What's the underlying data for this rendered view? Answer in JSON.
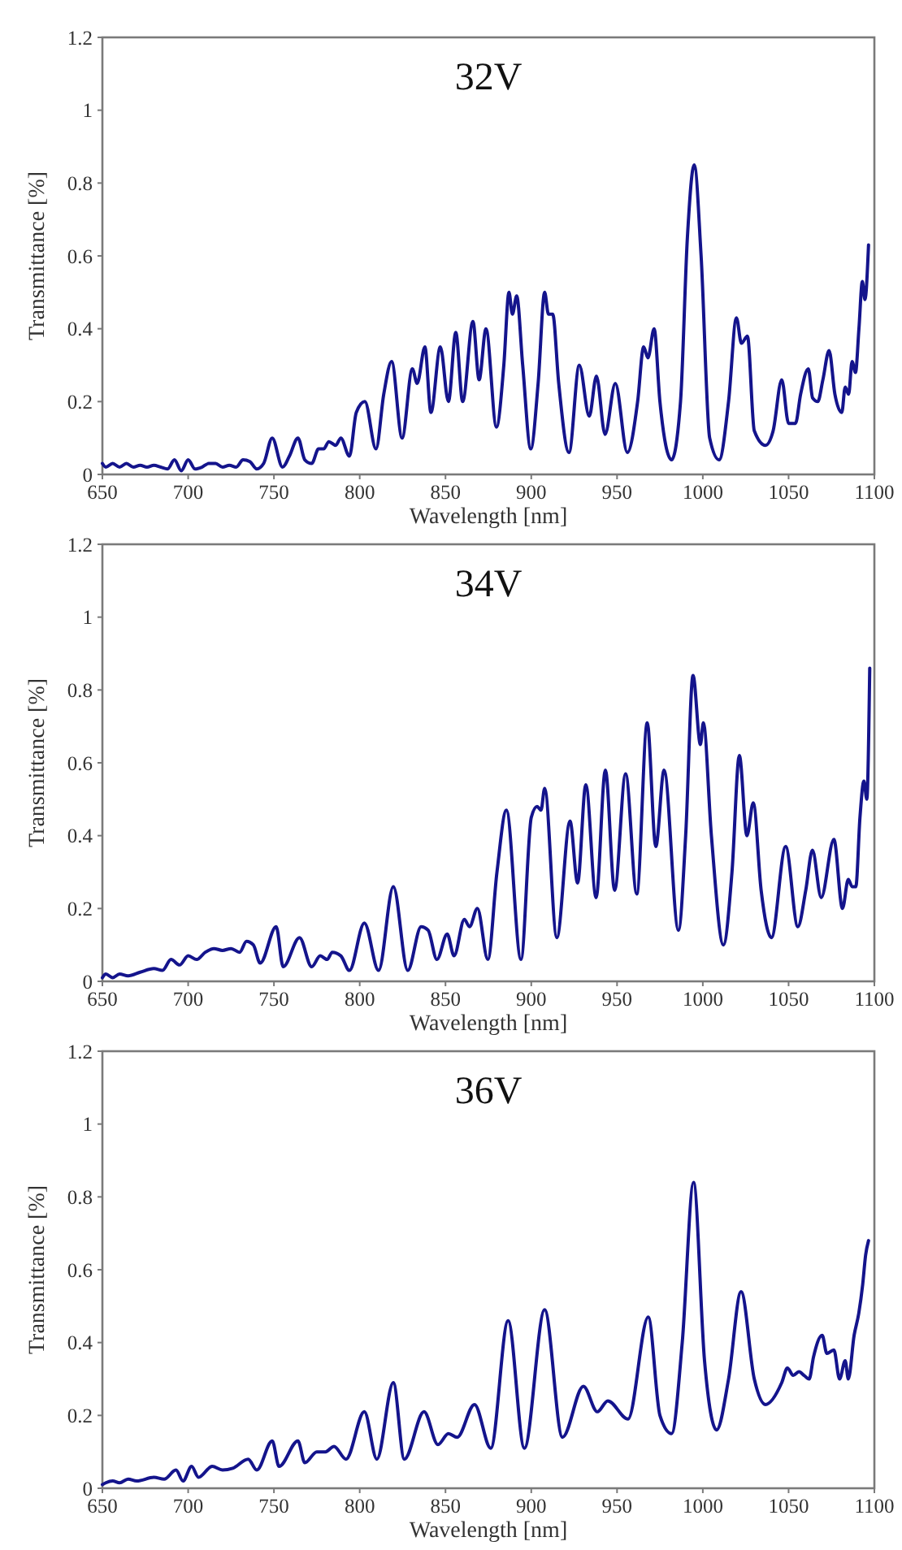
{
  "chart_data": [
    {
      "type": "line",
      "title": "32V",
      "xlabel": "Wavelength [nm]",
      "ylabel": "Transmittance [%]",
      "xlim": [
        650,
        1100
      ],
      "xticks": [
        650,
        700,
        750,
        800,
        850,
        900,
        950,
        1000,
        1050,
        1100
      ],
      "ylim": [
        0,
        1.2
      ],
      "yticks": [
        0,
        0.2,
        0.4,
        0.6,
        0.8,
        1,
        1.2
      ],
      "grid": false,
      "series": [
        {
          "color": "#14148c",
          "x": [
            650,
            652,
            656,
            660,
            664,
            668,
            672,
            676,
            680,
            684,
            688,
            692,
            696,
            700,
            704,
            708,
            712,
            716,
            720,
            724,
            728,
            732,
            736,
            740,
            744,
            749,
            755,
            759,
            764,
            768,
            772,
            776,
            779,
            782,
            786,
            789,
            794,
            798,
            803,
            809.5,
            814,
            818.6,
            824.7,
            830.7,
            833.5,
            838,
            841.5,
            847,
            851.7,
            856,
            860,
            866,
            869.6,
            873.6,
            879.7,
            884,
            887,
            889,
            891.5,
            895,
            899.7,
            904,
            907.8,
            910,
            912.5,
            916,
            922,
            928,
            933.8,
            938,
            943,
            949,
            956,
            962,
            965.5,
            968,
            971.6,
            975,
            981.8,
            987,
            991,
            995,
            999,
            1004,
            1009.5,
            1015,
            1019.6,
            1022.5,
            1026,
            1030,
            1036.5,
            1041,
            1046,
            1050,
            1054,
            1057,
            1061.5,
            1064,
            1067,
            1070,
            1073.6,
            1077,
            1081,
            1083,
            1085,
            1087,
            1089,
            1091,
            1093,
            1094.5,
            1096.6
          ],
          "values": [
            0.03,
            0.02,
            0.03,
            0.02,
            0.03,
            0.02,
            0.025,
            0.02,
            0.025,
            0.02,
            0.015,
            0.04,
            0.01,
            0.04,
            0.015,
            0.02,
            0.03,
            0.03,
            0.02,
            0.025,
            0.02,
            0.04,
            0.035,
            0.015,
            0.03,
            0.1,
            0.02,
            0.05,
            0.1,
            0.04,
            0.03,
            0.07,
            0.07,
            0.09,
            0.08,
            0.1,
            0.05,
            0.17,
            0.2,
            0.07,
            0.22,
            0.31,
            0.1,
            0.29,
            0.25,
            0.35,
            0.17,
            0.35,
            0.2,
            0.39,
            0.2,
            0.42,
            0.26,
            0.4,
            0.13,
            0.3,
            0.5,
            0.44,
            0.49,
            0.3,
            0.07,
            0.25,
            0.5,
            0.44,
            0.44,
            0.25,
            0.06,
            0.3,
            0.16,
            0.27,
            0.11,
            0.25,
            0.06,
            0.2,
            0.35,
            0.32,
            0.4,
            0.2,
            0.04,
            0.2,
            0.65,
            0.85,
            0.6,
            0.1,
            0.04,
            0.2,
            0.43,
            0.36,
            0.38,
            0.12,
            0.08,
            0.12,
            0.26,
            0.14,
            0.14,
            0.22,
            0.29,
            0.21,
            0.2,
            0.26,
            0.34,
            0.22,
            0.17,
            0.24,
            0.22,
            0.31,
            0.28,
            0.4,
            0.53,
            0.48,
            0.63
          ]
        }
      ]
    },
    {
      "type": "line",
      "title": "34V",
      "xlabel": "Wavelength [nm]",
      "ylabel": "Transmittance [%]",
      "xlim": [
        650,
        1100
      ],
      "xticks": [
        650,
        700,
        750,
        800,
        850,
        900,
        950,
        1000,
        1050,
        1100
      ],
      "ylim": [
        0,
        1.2
      ],
      "yticks": [
        0,
        0.2,
        0.4,
        0.6,
        0.8,
        1,
        1.2
      ],
      "grid": false,
      "series": [
        {
          "color": "#14148c",
          "x": [
            650,
            652,
            656,
            660,
            665,
            672,
            680,
            685,
            690,
            695,
            700,
            705,
            710,
            715,
            720,
            725,
            730,
            734,
            738,
            742,
            751.3,
            755.4,
            764.9,
            772,
            777,
            781,
            784,
            789,
            794,
            802.7,
            811,
            819.6,
            828,
            835.8,
            839.9,
            845,
            851,
            855,
            861,
            864,
            868.6,
            874.7,
            880,
            885.5,
            894,
            900,
            903.4,
            905.7,
            907.8,
            914.9,
            922.6,
            927,
            931.8,
            937.8,
            943.2,
            948.6,
            955,
            961.5,
            967.6,
            972.6,
            977.4,
            985.8,
            990,
            994.3,
            998.6,
            1000.3,
            1005,
            1012,
            1017,
            1021.3,
            1025.7,
            1029.4,
            1034,
            1040,
            1048.3,
            1055.4,
            1060,
            1063.9,
            1069,
            1076.4,
            1081.4,
            1084.8,
            1087,
            1089.2,
            1091.6,
            1093.9,
            1095.6,
            1097.3
          ],
          "values": [
            0.01,
            0.02,
            0.01,
            0.02,
            0.015,
            0.025,
            0.035,
            0.03,
            0.06,
            0.045,
            0.07,
            0.06,
            0.08,
            0.09,
            0.085,
            0.09,
            0.08,
            0.11,
            0.1,
            0.05,
            0.15,
            0.04,
            0.12,
            0.04,
            0.07,
            0.06,
            0.08,
            0.07,
            0.03,
            0.16,
            0.03,
            0.26,
            0.03,
            0.15,
            0.14,
            0.06,
            0.13,
            0.07,
            0.17,
            0.15,
            0.2,
            0.06,
            0.3,
            0.47,
            0.06,
            0.45,
            0.48,
            0.47,
            0.53,
            0.12,
            0.44,
            0.27,
            0.54,
            0.23,
            0.58,
            0.25,
            0.57,
            0.24,
            0.71,
            0.37,
            0.58,
            0.14,
            0.4,
            0.84,
            0.65,
            0.71,
            0.4,
            0.1,
            0.3,
            0.62,
            0.4,
            0.49,
            0.25,
            0.12,
            0.37,
            0.15,
            0.25,
            0.36,
            0.23,
            0.39,
            0.2,
            0.28,
            0.26,
            0.26,
            0.45,
            0.55,
            0.5,
            0.86
          ]
        }
      ]
    },
    {
      "type": "line",
      "title": "36V",
      "xlabel": "Wavelength [nm]",
      "ylabel": "Transmittance [%]",
      "xlim": [
        650,
        1100
      ],
      "xticks": [
        650,
        700,
        750,
        800,
        850,
        900,
        950,
        1000,
        1050,
        1100
      ],
      "ylim": [
        0,
        1.2
      ],
      "yticks": [
        0,
        0.2,
        0.4,
        0.6,
        0.8,
        1,
        1.2
      ],
      "grid": false,
      "series": [
        {
          "color": "#14148c",
          "x": [
            650,
            652,
            656,
            660,
            665,
            670,
            680,
            686,
            692.9,
            697,
            702,
            706,
            714,
            720,
            726,
            735,
            740,
            749,
            753,
            764,
            768,
            775,
            780,
            785,
            792,
            802.7,
            810,
            819.6,
            826,
            837.5,
            845.6,
            851.7,
            856.8,
            866.9,
            876.4,
            886.5,
            896,
            907.8,
            918.2,
            930.4,
            938.5,
            944.6,
            956.4,
            968.2,
            975,
            981.8,
            988,
            994.6,
            1001,
            1008,
            1015,
            1022.3,
            1030,
            1036.5,
            1046,
            1049.3,
            1052.7,
            1056,
            1059,
            1062,
            1064.5,
            1069.6,
            1072.3,
            1076.4,
            1079.7,
            1083,
            1084.8,
            1088.2,
            1090.9,
            1093.2,
            1094.9,
            1096.6
          ],
          "values": [
            0.01,
            0.015,
            0.02,
            0.015,
            0.025,
            0.02,
            0.03,
            0.025,
            0.05,
            0.02,
            0.06,
            0.03,
            0.06,
            0.05,
            0.055,
            0.08,
            0.05,
            0.13,
            0.06,
            0.13,
            0.07,
            0.1,
            0.1,
            0.115,
            0.08,
            0.21,
            0.08,
            0.29,
            0.08,
            0.21,
            0.12,
            0.15,
            0.14,
            0.23,
            0.11,
            0.46,
            0.11,
            0.49,
            0.14,
            0.28,
            0.21,
            0.24,
            0.19,
            0.47,
            0.2,
            0.15,
            0.4,
            0.84,
            0.35,
            0.16,
            0.3,
            0.54,
            0.3,
            0.23,
            0.29,
            0.33,
            0.31,
            0.32,
            0.31,
            0.3,
            0.36,
            0.42,
            0.37,
            0.38,
            0.3,
            0.35,
            0.3,
            0.42,
            0.48,
            0.56,
            0.64,
            0.68
          ]
        }
      ]
    }
  ]
}
